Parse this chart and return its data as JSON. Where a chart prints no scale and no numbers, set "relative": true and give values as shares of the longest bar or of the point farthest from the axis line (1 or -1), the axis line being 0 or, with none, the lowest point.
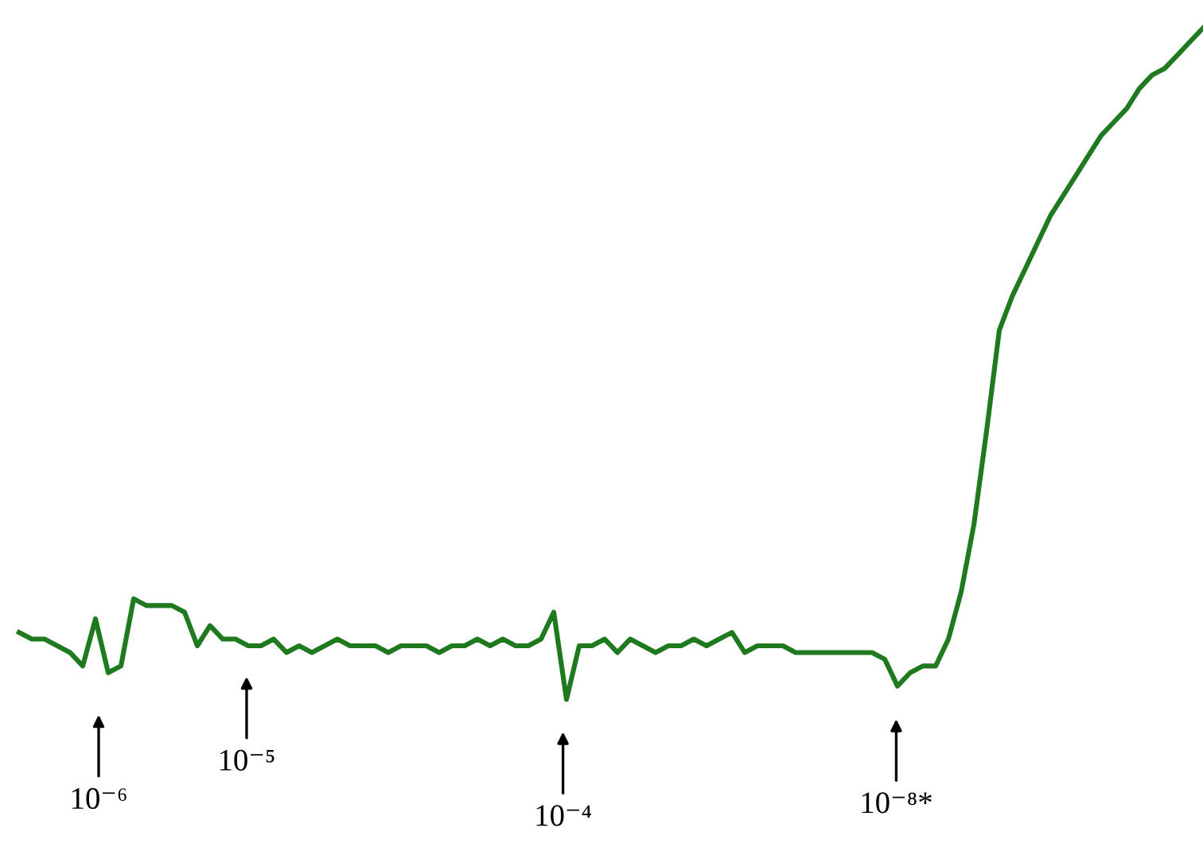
{
  "chart_data": {
    "type": "line",
    "relative": true,
    "tick_labels": false,
    "legend": false,
    "marker": "none",
    "line_style": "solid",
    "categories": [
      null,
      null,
      null,
      null,
      null,
      null,
      null,
      null,
      null,
      null,
      null,
      null,
      null,
      null,
      null,
      null,
      null,
      null,
      null,
      null,
      null,
      null,
      null,
      null,
      null,
      null,
      null,
      null,
      null,
      null,
      null,
      null,
      null,
      null,
      null,
      null,
      null,
      null,
      null,
      null,
      null,
      null,
      null,
      null,
      null,
      null,
      null,
      null,
      null,
      null,
      null,
      null,
      null,
      null,
      null,
      null,
      null,
      null,
      null,
      null,
      null,
      null,
      null,
      null,
      null,
      null,
      null,
      null,
      null,
      null,
      null,
      null,
      null,
      null,
      null,
      null,
      null,
      null,
      null,
      null,
      null,
      null,
      null,
      null,
      null,
      null,
      null,
      null,
      null,
      null,
      null,
      null,
      null,
      null
    ],
    "series": [
      {
        "color": "#1f7a1f",
        "values": [
          0.1,
          0.09,
          0.09,
          0.08,
          0.07,
          0.05,
          0.12,
          0.04,
          0.05,
          0.15,
          0.14,
          0.14,
          0.14,
          0.13,
          0.08,
          0.11,
          0.09,
          0.09,
          0.08,
          0.08,
          0.09,
          0.07,
          0.08,
          0.07,
          0.08,
          0.09,
          0.08,
          0.08,
          0.08,
          0.07,
          0.08,
          0.08,
          0.08,
          0.07,
          0.08,
          0.08,
          0.09,
          0.08,
          0.09,
          0.08,
          0.08,
          0.09,
          0.13,
          0.0,
          0.08,
          0.08,
          0.09,
          0.07,
          0.09,
          0.08,
          0.07,
          0.08,
          0.08,
          0.09,
          0.08,
          0.09,
          0.1,
          0.07,
          0.08,
          0.08,
          0.08,
          0.07,
          0.07,
          0.07,
          0.07,
          0.07,
          0.07,
          0.07,
          0.06,
          0.02,
          0.04,
          0.05,
          0.05,
          0.09,
          0.16,
          0.26,
          0.4,
          0.55,
          0.6,
          0.64,
          0.68,
          0.72,
          0.75,
          0.78,
          0.81,
          0.84,
          0.86,
          0.88,
          0.91,
          0.93,
          0.94,
          0.96,
          0.98,
          1.0
        ]
      }
    ],
    "annotations": [
      "10⁻⁶",
      "10⁻⁵",
      "10⁻⁴",
      "10⁻⁸*"
    ]
  }
}
